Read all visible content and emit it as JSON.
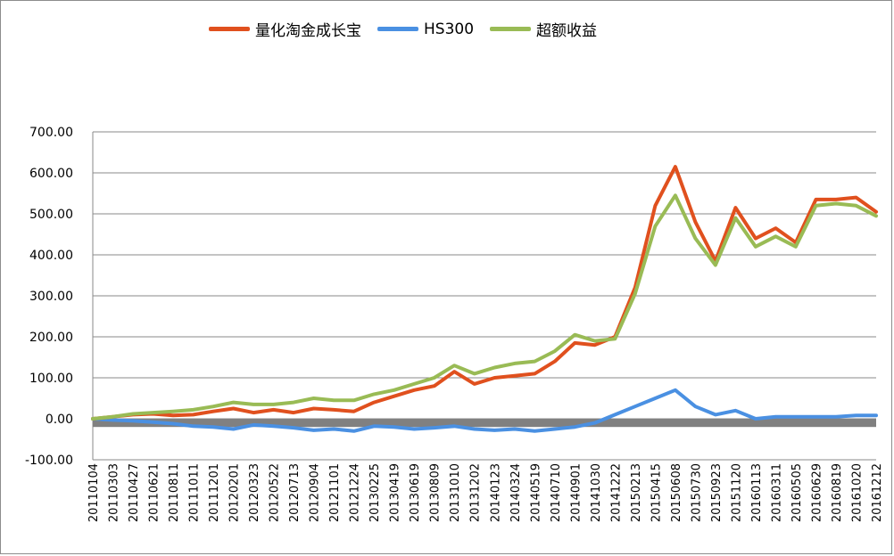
{
  "chart_data": {
    "type": "line",
    "title": "",
    "xlabel": "",
    "ylabel": "",
    "ylim": [
      -100,
      700
    ],
    "yticks": [
      "-100.00",
      "0.00",
      "100.00",
      "200.00",
      "300.00",
      "400.00",
      "500.00",
      "600.00",
      "700.00"
    ],
    "grid": true,
    "legend": "top",
    "x_tick_labels": [
      "20110104",
      "20110303",
      "20110427",
      "20110621",
      "20110811",
      "20111011",
      "20111201",
      "20120201",
      "20120323",
      "20120522",
      "20120713",
      "20120904",
      "20121101",
      "20121224",
      "20130225",
      "20130419",
      "20130619",
      "20130809",
      "20131010",
      "20131202",
      "20140123",
      "20140324",
      "20140519",
      "20140710",
      "20140901",
      "20141030",
      "20141222",
      "20150213",
      "20150415",
      "20150608",
      "20150730",
      "20150923",
      "20151120",
      "20160113",
      "20160311",
      "20160505",
      "20160629",
      "20160819",
      "20161020",
      "20161212"
    ],
    "series": [
      {
        "name": "量化淘金成长宝",
        "color": "#e0501e",
        "values": [
          0,
          5,
          10,
          12,
          8,
          10,
          18,
          25,
          15,
          22,
          15,
          25,
          22,
          18,
          40,
          55,
          70,
          80,
          115,
          85,
          100,
          105,
          110,
          140,
          185,
          180,
          200,
          320,
          520,
          615,
          480,
          385,
          515,
          440,
          465,
          430,
          535,
          535,
          540,
          505
        ]
      },
      {
        "name": "HS300",
        "color": "#4a90e2",
        "values": [
          0,
          -3,
          -5,
          -8,
          -12,
          -18,
          -20,
          -25,
          -15,
          -18,
          -22,
          -28,
          -25,
          -30,
          -18,
          -20,
          -25,
          -22,
          -18,
          -25,
          -28,
          -25,
          -30,
          -25,
          -20,
          -10,
          10,
          30,
          50,
          70,
          30,
          10,
          20,
          0,
          5,
          5,
          5,
          5,
          8,
          8
        ]
      },
      {
        "name": "超额收益",
        "color": "#99bb55",
        "values": [
          0,
          5,
          12,
          15,
          18,
          22,
          30,
          40,
          35,
          35,
          40,
          50,
          45,
          45,
          60,
          70,
          85,
          100,
          130,
          110,
          125,
          135,
          140,
          165,
          205,
          190,
          195,
          305,
          470,
          545,
          440,
          375,
          490,
          420,
          445,
          420,
          520,
          525,
          520,
          495
        ]
      }
    ],
    "baseline_band": {
      "from": -20,
      "to": 0,
      "color": "#808080"
    }
  }
}
